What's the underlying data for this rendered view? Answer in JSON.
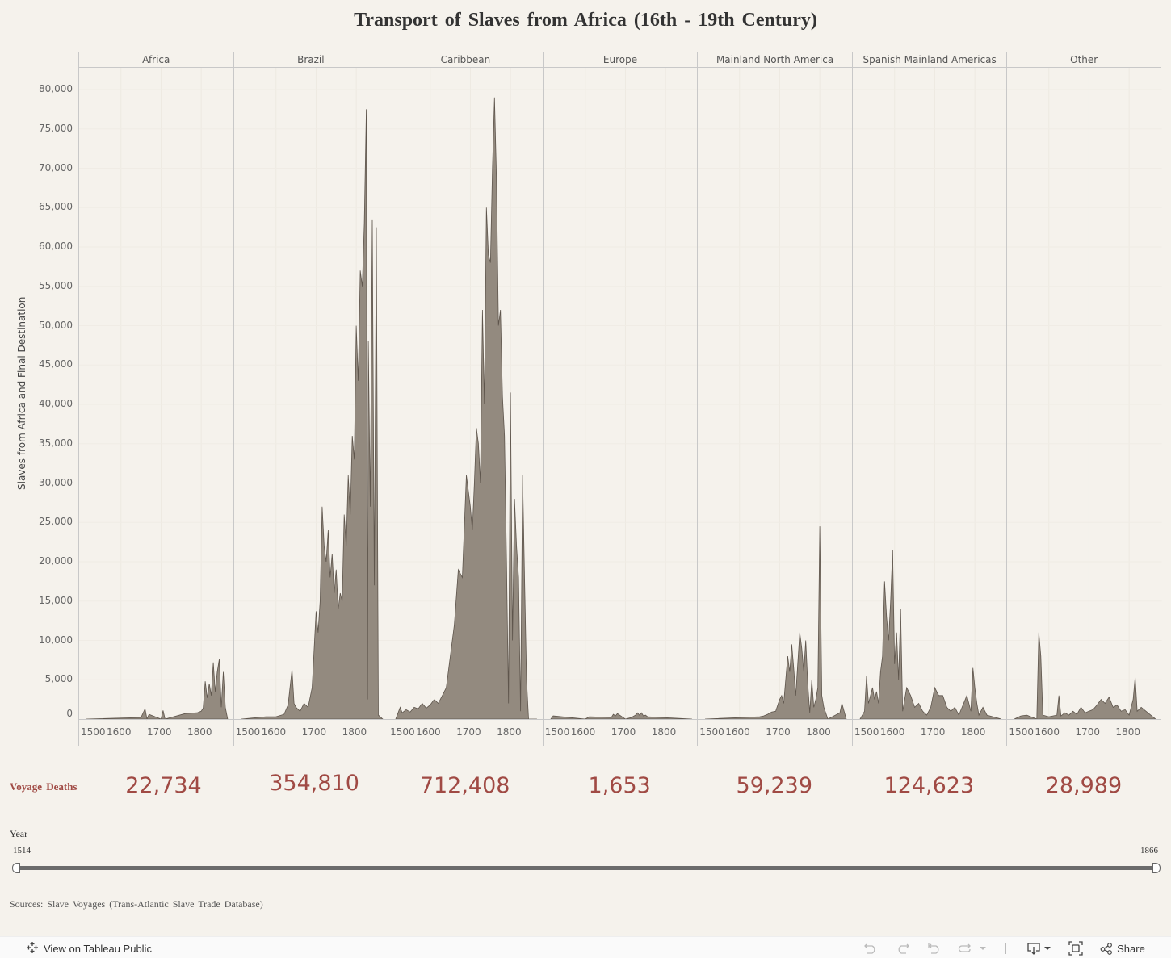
{
  "title": "Transport of Slaves from Africa (16th - 19th Century)",
  "y_axis": {
    "label": "Slaves from Africa and Final Destination",
    "ticks": [
      "80,000",
      "75,000",
      "70,000",
      "65,000",
      "60,000",
      "55,000",
      "50,000",
      "45,000",
      "40,000",
      "35,000",
      "30,000",
      "25,000",
      "20,000",
      "15,000",
      "10,000",
      "5,000",
      "0"
    ]
  },
  "x_ticks": [
    "1500",
    "1600",
    "1700",
    "1800"
  ],
  "panels": [
    {
      "name": "Africa",
      "deaths": "22,734"
    },
    {
      "name": "Brazil",
      "deaths": "354,810"
    },
    {
      "name": "Caribbean",
      "deaths": "712,408"
    },
    {
      "name": "Europe",
      "deaths": "1,653"
    },
    {
      "name": "Mainland North America",
      "deaths": "59,239"
    },
    {
      "name": "Spanish Mainland Americas",
      "deaths": "124,623"
    },
    {
      "name": "Other",
      "deaths": "28,989"
    }
  ],
  "deaths_label": "Voyage Deaths",
  "year_filter": {
    "label": "Year",
    "min": "1514",
    "max": "1866"
  },
  "sources": "Sources: Slave Voyages (Trans-Atlantic Slave Trade Database)",
  "footer": {
    "view_on_tableau": "View on Tableau Public",
    "share": "Share"
  },
  "colors": {
    "area_fill": "#938a7f",
    "area_stroke": "#5e554c",
    "deaths_text": "#a04a44",
    "background": "#f5f2ec"
  },
  "chart_data": {
    "type": "area",
    "title": "Transport of Slaves from Africa (16th - 19th Century)",
    "xlabel": "Year",
    "ylabel": "Slaves from Africa and Final Destination",
    "ylim": [
      0,
      80000
    ],
    "xlim": [
      1514,
      1866
    ],
    "facet_by": "Final Destination",
    "categories": [
      "Africa",
      "Brazil",
      "Caribbean",
      "Europe",
      "Mainland North America",
      "Spanish Mainland Americas",
      "Other"
    ],
    "series": [
      {
        "name": "Africa",
        "x": [
          1514,
          1650,
          1660,
          1665,
          1670,
          1700,
          1705,
          1710,
          1760,
          1790,
          1800,
          1805,
          1810,
          1815,
          1820,
          1825,
          1830,
          1835,
          1840,
          1845,
          1850,
          1855,
          1860,
          1866
        ],
        "values": [
          0,
          200,
          1300,
          0,
          600,
          0,
          1100,
          0,
          700,
          800,
          1000,
          1400,
          4800,
          2700,
          4500,
          3000,
          7200,
          3500,
          6000,
          7600,
          1500,
          6000,
          1500,
          0
        ]
      },
      {
        "name": "Brazil",
        "x": [
          1514,
          1575,
          1600,
          1620,
          1630,
          1640,
          1645,
          1650,
          1660,
          1670,
          1680,
          1690,
          1700,
          1705,
          1710,
          1715,
          1720,
          1725,
          1730,
          1735,
          1740,
          1745,
          1750,
          1755,
          1760,
          1765,
          1770,
          1775,
          1780,
          1785,
          1790,
          1795,
          1800,
          1805,
          1810,
          1815,
          1820,
          1825,
          1828,
          1830,
          1835,
          1840,
          1845,
          1850,
          1855,
          1866
        ],
        "values": [
          0,
          300,
          300,
          600,
          1800,
          6300,
          2000,
          1500,
          1000,
          2000,
          1500,
          4000,
          13700,
          11000,
          15000,
          27000,
          22000,
          20000,
          24000,
          18000,
          21000,
          16000,
          19000,
          14000,
          16000,
          15000,
          26000,
          22000,
          31000,
          26000,
          36000,
          33000,
          50000,
          43000,
          57000,
          55000,
          63000,
          77500,
          2500,
          48000,
          27000,
          63500,
          17000,
          62500,
          500,
          0
        ]
      },
      {
        "name": "Caribbean",
        "x": [
          1514,
          1525,
          1530,
          1540,
          1550,
          1560,
          1570,
          1580,
          1590,
          1600,
          1610,
          1620,
          1630,
          1640,
          1650,
          1660,
          1670,
          1680,
          1690,
          1700,
          1705,
          1710,
          1715,
          1720,
          1725,
          1730,
          1735,
          1740,
          1745,
          1750,
          1755,
          1760,
          1765,
          1770,
          1775,
          1780,
          1785,
          1790,
          1795,
          1800,
          1805,
          1810,
          1815,
          1820,
          1825,
          1830,
          1835,
          1840,
          1845,
          1850,
          1855,
          1866
        ],
        "values": [
          0,
          1500,
          800,
          1200,
          900,
          1500,
          1300,
          2000,
          1400,
          1800,
          2500,
          2000,
          3000,
          4000,
          8000,
          12000,
          19000,
          18000,
          31000,
          27000,
          24000,
          30000,
          37000,
          35000,
          30000,
          52000,
          40000,
          65000,
          59000,
          58000,
          70000,
          79000,
          69000,
          50000,
          52000,
          41000,
          36000,
          20000,
          2000,
          41500,
          10000,
          28000,
          22000,
          18000,
          1000,
          31000,
          18000,
          5000,
          0,
          0,
          0,
          0
        ]
      },
      {
        "name": "Europe",
        "x": [
          1514,
          1520,
          1600,
          1610,
          1665,
          1670,
          1675,
          1680,
          1700,
          1715,
          1725,
          1730,
          1735,
          1740,
          1745,
          1750,
          1755,
          1866
        ],
        "values": [
          0,
          400,
          0,
          300,
          200,
          600,
          400,
          700,
          0,
          200,
          500,
          800,
          500,
          800,
          400,
          500,
          300,
          0
        ]
      },
      {
        "name": "Mainland North America",
        "x": [
          1514,
          1650,
          1660,
          1670,
          1680,
          1690,
          1700,
          1705,
          1710,
          1715,
          1720,
          1725,
          1730,
          1735,
          1740,
          1745,
          1750,
          1755,
          1760,
          1765,
          1770,
          1775,
          1780,
          1785,
          1790,
          1795,
          1800,
          1805,
          1810,
          1820,
          1850,
          1855,
          1866
        ],
        "values": [
          0,
          300,
          400,
          600,
          900,
          1000,
          2500,
          3000,
          2000,
          5000,
          8000,
          6000,
          9500,
          6500,
          3000,
          7000,
          11000,
          9000,
          6000,
          10000,
          4500,
          800,
          5000,
          1500,
          2500,
          4000,
          24500,
          3000,
          1500,
          0,
          800,
          2000,
          0
        ]
      },
      {
        "name": "Spanish Mainland Americas",
        "x": [
          1514,
          1525,
          1530,
          1535,
          1540,
          1545,
          1550,
          1555,
          1560,
          1565,
          1570,
          1575,
          1580,
          1585,
          1590,
          1595,
          1600,
          1605,
          1610,
          1615,
          1620,
          1625,
          1630,
          1640,
          1650,
          1660,
          1670,
          1680,
          1690,
          1700,
          1710,
          1720,
          1730,
          1740,
          1750,
          1760,
          1780,
          1790,
          1795,
          1800,
          1805,
          1810,
          1820,
          1830,
          1866
        ],
        "values": [
          0,
          1000,
          5500,
          2000,
          3000,
          4000,
          2500,
          3500,
          2000,
          6000,
          8000,
          17500,
          13000,
          10000,
          15000,
          21500,
          7000,
          11000,
          5000,
          14000,
          1000,
          2500,
          4000,
          3000,
          1500,
          2000,
          1000,
          500,
          1500,
          4000,
          3000,
          3000,
          1500,
          1000,
          1500,
          500,
          3000,
          1000,
          6500,
          4000,
          2000,
          500,
          1500,
          500,
          0
        ]
      },
      {
        "name": "Other",
        "x": [
          1514,
          1530,
          1545,
          1570,
          1575,
          1580,
          1585,
          1600,
          1620,
          1625,
          1630,
          1640,
          1650,
          1660,
          1670,
          1680,
          1690,
          1700,
          1710,
          1720,
          1730,
          1740,
          1750,
          1760,
          1770,
          1780,
          1790,
          1800,
          1805,
          1810,
          1815,
          1820,
          1830,
          1866
        ],
        "values": [
          0,
          400,
          500,
          0,
          11000,
          8000,
          500,
          300,
          500,
          3000,
          400,
          800,
          500,
          1000,
          600,
          1500,
          800,
          1000,
          1200,
          1800,
          2500,
          2000,
          2800,
          1500,
          1800,
          1000,
          1200,
          500,
          1500,
          2500,
          5300,
          1000,
          1500,
          0
        ]
      }
    ]
  }
}
